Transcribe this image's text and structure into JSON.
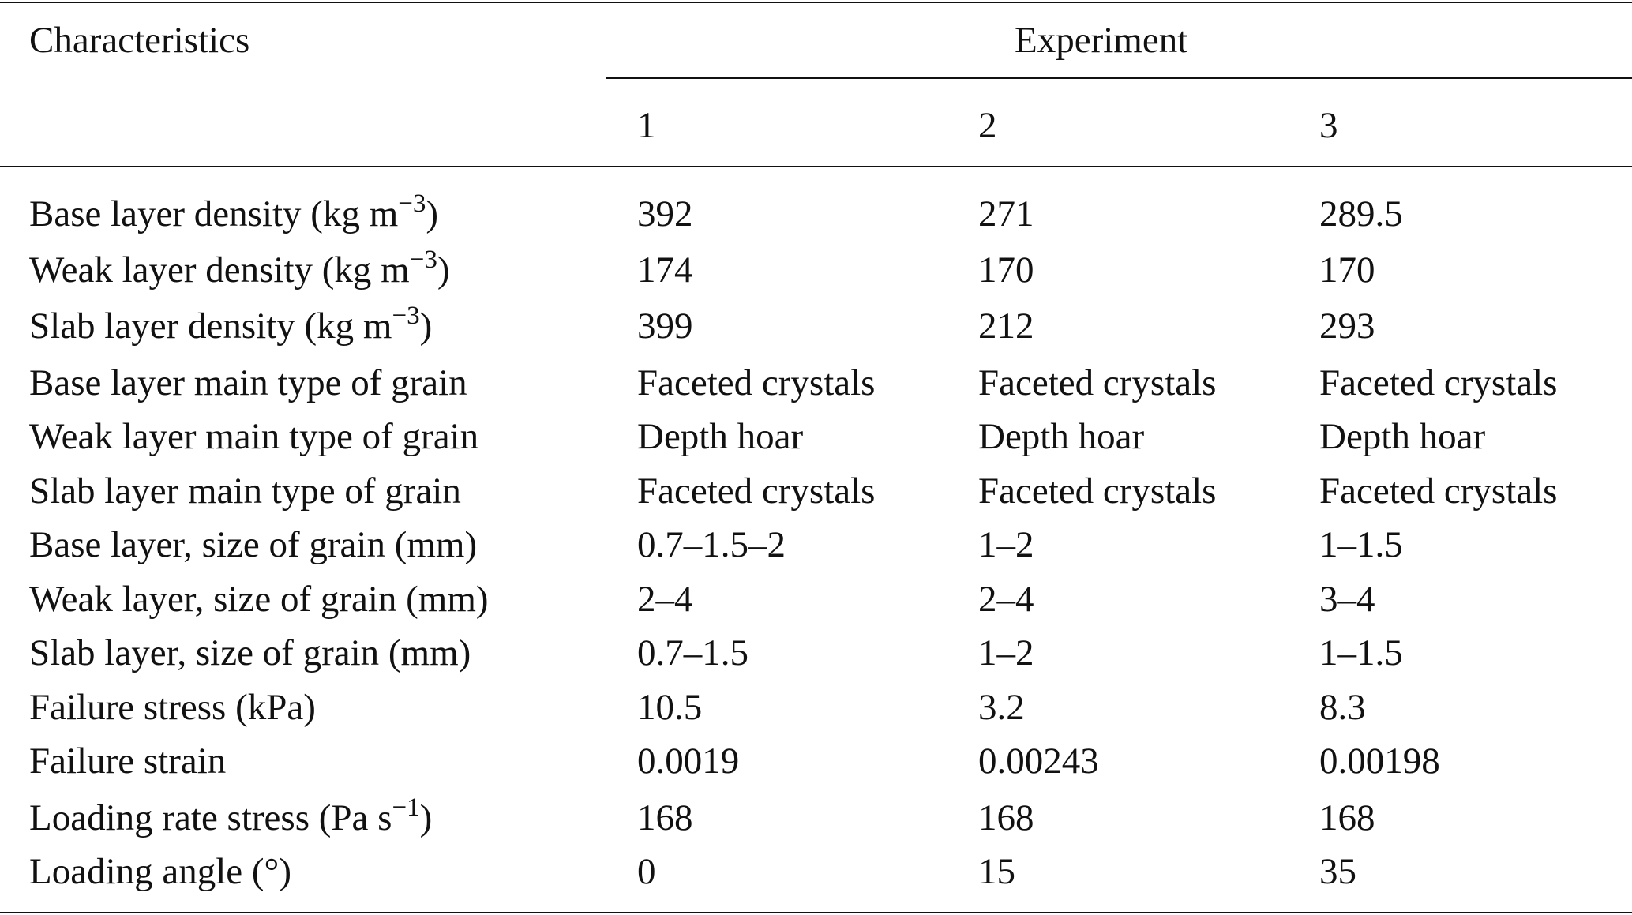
{
  "table": {
    "header": {
      "stub": "Characteristics",
      "group": "Experiment",
      "columns": [
        "1",
        "2",
        "3"
      ]
    },
    "rows": [
      {
        "label": "Base layer density (kg m",
        "label_sup": "−3",
        "label_end": ")",
        "values": [
          "392",
          "271",
          "289.5"
        ]
      },
      {
        "label": "Weak layer density (kg m",
        "label_sup": "−3",
        "label_end": ")",
        "values": [
          "174",
          "170",
          "170"
        ]
      },
      {
        "label": "Slab layer density (kg m",
        "label_sup": "−3",
        "label_end": ")",
        "values": [
          "399",
          "212",
          "293"
        ]
      },
      {
        "label": "Base layer main type of grain",
        "values": [
          "Faceted crystals",
          "Faceted crystals",
          "Faceted crystals"
        ]
      },
      {
        "label": "Weak layer main type of grain",
        "values": [
          "Depth hoar",
          "Depth hoar",
          "Depth hoar"
        ]
      },
      {
        "label": "Slab layer main type of grain",
        "values": [
          "Faceted crystals",
          "Faceted crystals",
          "Faceted crystals"
        ]
      },
      {
        "label": "Base layer, size of grain (mm)",
        "values": [
          "0.7–1.5–2",
          "1–2",
          "1–1.5"
        ]
      },
      {
        "label": "Weak layer, size of grain (mm)",
        "values": [
          "2–4",
          "2–4",
          "3–4"
        ]
      },
      {
        "label": "Slab layer, size of grain (mm)",
        "values": [
          "0.7–1.5",
          "1–2",
          "1–1.5"
        ]
      },
      {
        "label": "Failure stress (kPa)",
        "values": [
          "10.5",
          "3.2",
          "8.3"
        ]
      },
      {
        "label": "Failure strain",
        "values": [
          "0.0019",
          "0.00243",
          "0.00198"
        ]
      },
      {
        "label": "Loading rate stress (Pa s",
        "label_sup": "−1",
        "label_end": ")",
        "values": [
          "168",
          "168",
          "168"
        ]
      },
      {
        "label": "Loading angle (°)",
        "values": [
          "0",
          "15",
          "35"
        ]
      }
    ]
  }
}
